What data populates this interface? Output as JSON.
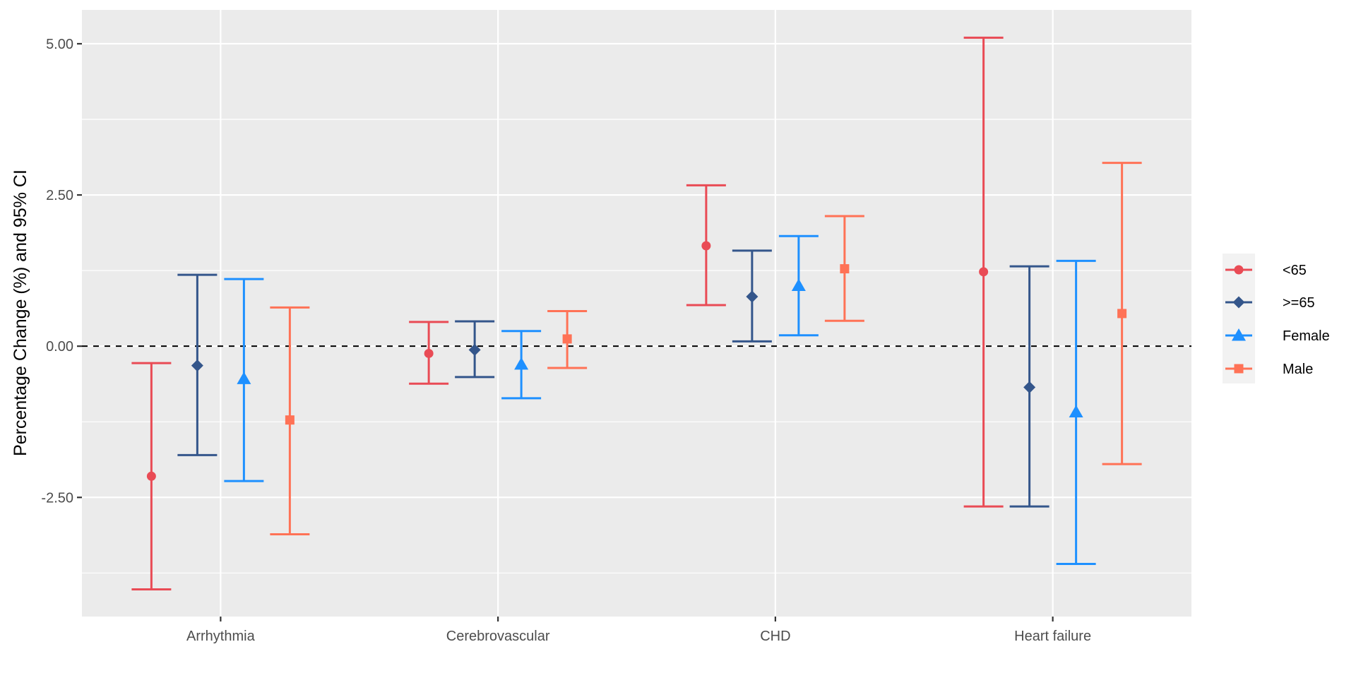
{
  "chart_data": {
    "type": "errorbar",
    "title": "",
    "xlabel": "",
    "ylabel": "Percentage Change (%) and 95% CI",
    "ylim": [
      -4.47,
      5.56
    ],
    "yticks": [
      -2.5,
      0,
      2.5,
      5
    ],
    "ytick_labels": [
      "-2.50",
      "0.00",
      "2.50",
      "5.00"
    ],
    "grid": true,
    "reference_line": {
      "y": 0,
      "style": "dashed",
      "color": "#000000"
    },
    "categories": [
      "Arrhythmia",
      "Cerebrovascular",
      "CHD",
      "Heart failure"
    ],
    "legend_position": "right",
    "series": [
      {
        "name": "<65",
        "color": "#E94B55",
        "marker": "circle",
        "estimate": [
          -2.15,
          -0.12,
          1.66,
          1.23
        ],
        "lower": [
          -4.02,
          -0.62,
          0.68,
          -2.65
        ],
        "upper": [
          -0.28,
          0.4,
          2.66,
          5.1
        ]
      },
      {
        "name": ">=65",
        "color": "#34568B",
        "marker": "diamond",
        "estimate": [
          -0.32,
          -0.06,
          0.82,
          -0.68
        ],
        "lower": [
          -1.8,
          -0.51,
          0.08,
          -2.65
        ],
        "upper": [
          1.18,
          0.41,
          1.58,
          1.32
        ]
      },
      {
        "name": "Female",
        "color": "#1E90FF",
        "marker": "triangle",
        "estimate": [
          -0.54,
          -0.3,
          1.0,
          -1.09
        ],
        "lower": [
          -2.23,
          -0.86,
          0.18,
          -3.6
        ],
        "upper": [
          1.11,
          0.25,
          1.82,
          1.41
        ]
      },
      {
        "name": "Male",
        "color": "#FF7256",
        "marker": "square",
        "estimate": [
          -1.22,
          0.12,
          1.28,
          0.54
        ],
        "lower": [
          -3.11,
          -0.36,
          0.42,
          -1.95
        ],
        "upper": [
          0.64,
          0.58,
          2.15,
          3.03
        ]
      }
    ]
  }
}
